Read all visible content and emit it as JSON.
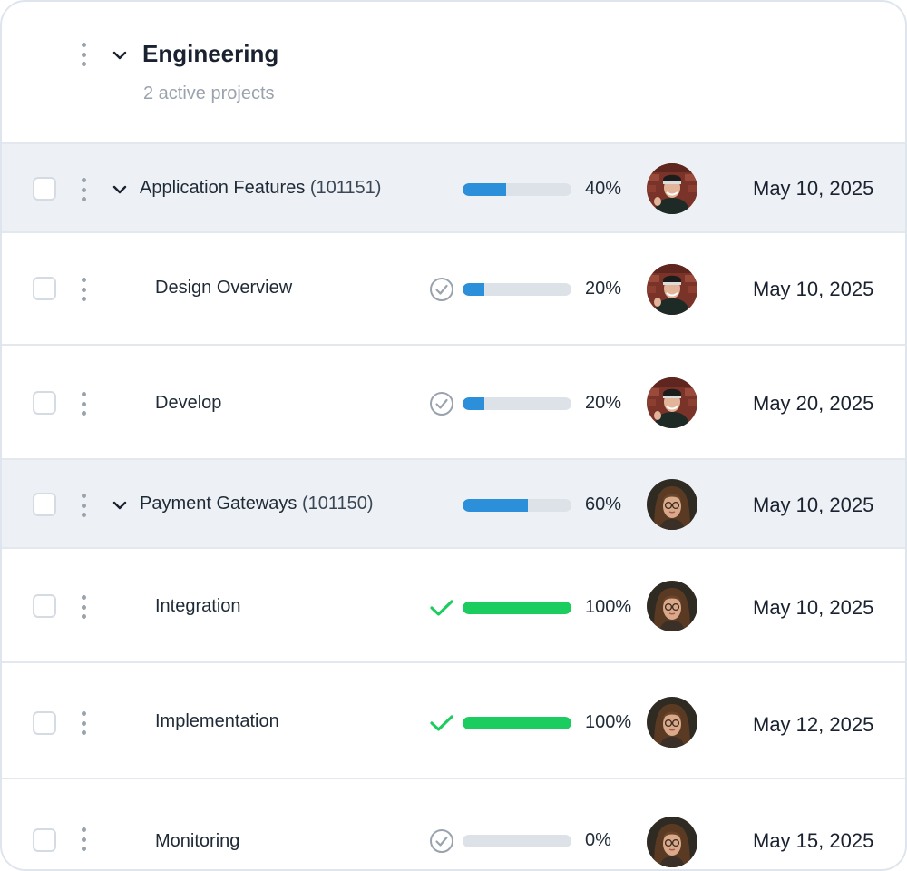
{
  "group": {
    "title": "Engineering",
    "subtitle": "2 active projects"
  },
  "rows": [
    {
      "name": "Application Features",
      "code": "(101151)",
      "progress_pct": 40,
      "percent_label": "40%",
      "date": "May 10, 2025",
      "assignee": "man-avatar"
    },
    {
      "name": "Design Overview",
      "progress_pct": 20,
      "percent_label": "20%",
      "date": "May 10, 2025",
      "status_icon": "circle-check-icon",
      "assignee": "man-avatar"
    },
    {
      "name": "Develop",
      "progress_pct": 20,
      "percent_label": "20%",
      "date": "May 20, 2025",
      "status_icon": "circle-check-icon",
      "assignee": "man-avatar"
    },
    {
      "name": "Payment Gateways",
      "code": "(101150)",
      "progress_pct": 60,
      "percent_label": "60%",
      "date": "May 10, 2025",
      "assignee": "woman-avatar"
    },
    {
      "name": "Integration",
      "progress_pct": 100,
      "percent_label": "100%",
      "date": "May 10, 2025",
      "status_icon": "green-check-icon",
      "assignee": "woman-avatar"
    },
    {
      "name": "Implementation",
      "progress_pct": 100,
      "percent_label": "100%",
      "date": "May 12, 2025",
      "status_icon": "green-check-icon",
      "assignee": "woman-avatar"
    },
    {
      "name": "Monitoring",
      "progress_pct": 0,
      "percent_label": "0%",
      "date": "May 15, 2025",
      "status_icon": "circle-check-icon",
      "assignee": "woman-avatar"
    }
  ],
  "colors": {
    "progress": "#2b90d9",
    "complete": "#1bcc5e",
    "track": "#dde2e8",
    "parent_row_bg": "#edf1f5"
  }
}
